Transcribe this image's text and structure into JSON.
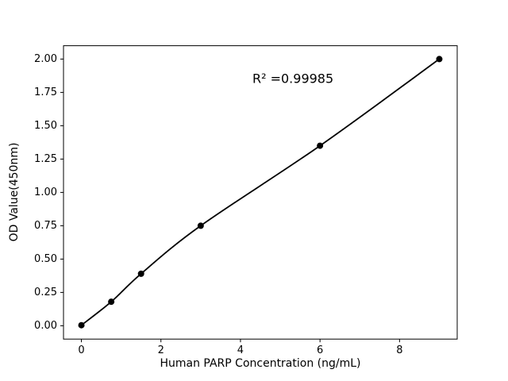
{
  "figure": {
    "background": "#ffffff"
  },
  "chart_data": {
    "type": "scatter",
    "title": "",
    "xlabel": "Human PARP Concentration (ng/mL)",
    "ylabel": "OD Value(450nm)",
    "x": [
      0,
      0.75,
      1.5,
      3,
      6,
      9
    ],
    "y": [
      0.004,
      0.18,
      0.39,
      0.75,
      1.35,
      2.0
    ],
    "fit_line": true,
    "annotation": {
      "text": "R² =0.99985",
      "x": 4.3,
      "y": 1.82
    },
    "xlim": [
      -0.45,
      9.45
    ],
    "ylim": [
      -0.1,
      2.1
    ],
    "xticks": [
      0,
      2,
      4,
      6,
      8
    ],
    "yticks": [
      0.0,
      0.25,
      0.5,
      0.75,
      1.0,
      1.25,
      1.5,
      1.75,
      2.0
    ],
    "grid": false,
    "legend": null,
    "marker_color": "#000000",
    "line_color": "#000000",
    "axis_color": "#000000"
  }
}
